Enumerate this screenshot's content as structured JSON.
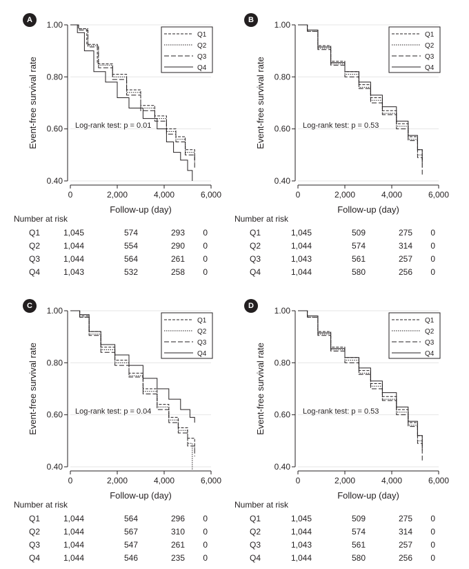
{
  "risk_title": "Number at risk",
  "chart_data": [
    {
      "panel": "A",
      "type": "line",
      "xlabel": "Follow-up (day)",
      "ylabel": "Event-free survival rate",
      "xlim": [
        0,
        6000
      ],
      "ylim": [
        0.4,
        1.0
      ],
      "xticks": [
        "0",
        "2,000",
        "4,000",
        "6,000"
      ],
      "yticks": [
        "0.40",
        "0.60",
        "0.80",
        "1.00"
      ],
      "legend_position": "top-right",
      "annotation": "Log-rank test: p = 0.01",
      "series": [
        {
          "name": "Q1",
          "dash": "4 2",
          "x": [
            0,
            350,
            700,
            1150,
            1800,
            2400,
            3000,
            3600,
            4100,
            4500,
            4900,
            5300
          ],
          "y": [
            1.0,
            0.985,
            0.925,
            0.85,
            0.81,
            0.75,
            0.69,
            0.65,
            0.6,
            0.57,
            0.52,
            0.48
          ]
        },
        {
          "name": "Q2",
          "dash": "1.5 1.5",
          "x": [
            0,
            350,
            750,
            1200,
            1800,
            2400,
            3000,
            3600,
            4100,
            4500,
            4900,
            5300
          ],
          "y": [
            1.0,
            0.985,
            0.92,
            0.845,
            0.8,
            0.74,
            0.68,
            0.64,
            0.59,
            0.56,
            0.51,
            0.47
          ]
        },
        {
          "name": "Q3",
          "dash": "7 3",
          "x": [
            0,
            350,
            750,
            1200,
            1800,
            2400,
            3000,
            3600,
            4100,
            4500,
            4900,
            5300
          ],
          "y": [
            1.0,
            0.98,
            0.915,
            0.835,
            0.79,
            0.73,
            0.67,
            0.63,
            0.58,
            0.55,
            0.5,
            0.45
          ]
        },
        {
          "name": "Q4",
          "dash": "",
          "x": [
            0,
            300,
            600,
            1000,
            1500,
            2000,
            2500,
            3100,
            3700,
            4100,
            4400,
            4700,
            5000,
            5200
          ],
          "y": [
            1.0,
            0.97,
            0.9,
            0.82,
            0.78,
            0.72,
            0.68,
            0.64,
            0.6,
            0.55,
            0.51,
            0.48,
            0.44,
            0.4
          ]
        }
      ],
      "at_risk": [
        {
          "group": "Q1",
          "counts": [
            "1,045",
            "574",
            "293",
            "0"
          ]
        },
        {
          "group": "Q2",
          "counts": [
            "1,044",
            "554",
            "290",
            "0"
          ]
        },
        {
          "group": "Q3",
          "counts": [
            "1,044",
            "564",
            "261",
            "0"
          ]
        },
        {
          "group": "Q4",
          "counts": [
            "1,043",
            "532",
            "258",
            "0"
          ]
        }
      ]
    },
    {
      "panel": "B",
      "type": "line",
      "xlabel": "Follow-up (day)",
      "ylabel": "Event-free survival rate",
      "xlim": [
        0,
        6000
      ],
      "ylim": [
        0.4,
        1.0
      ],
      "xticks": [
        "0",
        "2,000",
        "4,000",
        "6,000"
      ],
      "yticks": [
        "0.40",
        "0.60",
        "0.80",
        "1.00"
      ],
      "legend_position": "top-right",
      "annotation": "Log-rank test: p = 0.53",
      "series": [
        {
          "name": "Q1",
          "dash": "4 2",
          "x": [
            0,
            400,
            850,
            1400,
            2000,
            2600,
            3100,
            3600,
            4200,
            4700,
            5100,
            5300
          ],
          "y": [
            1.0,
            0.98,
            0.92,
            0.86,
            0.82,
            0.77,
            0.72,
            0.67,
            0.62,
            0.57,
            0.52,
            0.48
          ]
        },
        {
          "name": "Q2",
          "dash": "1.5 1.5",
          "x": [
            0,
            400,
            850,
            1400,
            2000,
            2600,
            3100,
            3600,
            4200,
            4700,
            5100,
            5300
          ],
          "y": [
            1.0,
            0.975,
            0.91,
            0.85,
            0.81,
            0.76,
            0.71,
            0.66,
            0.61,
            0.56,
            0.5,
            0.45
          ]
        },
        {
          "name": "Q3",
          "dash": "7 3",
          "x": [
            0,
            400,
            850,
            1400,
            2000,
            2600,
            3100,
            3600,
            4200,
            4700,
            5100,
            5300
          ],
          "y": [
            1.0,
            0.975,
            0.905,
            0.845,
            0.8,
            0.755,
            0.7,
            0.655,
            0.6,
            0.555,
            0.49,
            0.42
          ]
        },
        {
          "name": "Q4",
          "dash": "",
          "x": [
            0,
            400,
            850,
            1400,
            2000,
            2600,
            3100,
            3600,
            4200,
            4700,
            5100,
            5300
          ],
          "y": [
            1.0,
            0.98,
            0.915,
            0.855,
            0.82,
            0.78,
            0.73,
            0.685,
            0.63,
            0.575,
            0.52,
            0.47
          ]
        }
      ],
      "at_risk": [
        {
          "group": "Q1",
          "counts": [
            "1,045",
            "509",
            "275",
            "0"
          ]
        },
        {
          "group": "Q2",
          "counts": [
            "1,044",
            "574",
            "314",
            "0"
          ]
        },
        {
          "group": "Q3",
          "counts": [
            "1,043",
            "561",
            "257",
            "0"
          ]
        },
        {
          "group": "Q4",
          "counts": [
            "1,044",
            "580",
            "256",
            "0"
          ]
        }
      ]
    },
    {
      "panel": "C",
      "type": "line",
      "xlabel": "Follow-up (day)",
      "ylabel": "Event-free survival rate",
      "xlim": [
        0,
        6000
      ],
      "ylim": [
        0.4,
        1.0
      ],
      "xticks": [
        "0",
        "2,000",
        "4,000",
        "6,000"
      ],
      "yticks": [
        "0.40",
        "0.60",
        "0.80",
        "1.00"
      ],
      "legend_position": "top-right",
      "annotation": "Log-rank test: p = 0.04",
      "series": [
        {
          "name": "Q1",
          "dash": "4 2",
          "x": [
            0,
            400,
            800,
            1300,
            1900,
            2500,
            3100,
            3700,
            4200,
            4600,
            5000,
            5300
          ],
          "y": [
            1.0,
            0.98,
            0.92,
            0.86,
            0.81,
            0.76,
            0.7,
            0.64,
            0.59,
            0.55,
            0.51,
            0.47
          ]
        },
        {
          "name": "Q2",
          "dash": "1.5 1.5",
          "x": [
            0,
            400,
            800,
            1300,
            1900,
            2500,
            3100,
            3700,
            4200,
            4600,
            5000,
            5200
          ],
          "y": [
            1.0,
            0.975,
            0.91,
            0.85,
            0.8,
            0.75,
            0.69,
            0.63,
            0.58,
            0.54,
            0.49,
            0.39
          ]
        },
        {
          "name": "Q3",
          "dash": "7 3",
          "x": [
            0,
            400,
            800,
            1300,
            1900,
            2500,
            3100,
            3700,
            4200,
            4600,
            5000,
            5300
          ],
          "y": [
            1.0,
            0.975,
            0.905,
            0.84,
            0.79,
            0.745,
            0.68,
            0.62,
            0.57,
            0.53,
            0.48,
            0.44
          ]
        },
        {
          "name": "Q4",
          "dash": "",
          "x": [
            0,
            400,
            800,
            1300,
            1900,
            2500,
            3100,
            3700,
            4200,
            4700,
            5100,
            5300
          ],
          "y": [
            1.0,
            0.985,
            0.92,
            0.87,
            0.83,
            0.79,
            0.74,
            0.7,
            0.66,
            0.62,
            0.59,
            0.57
          ]
        }
      ],
      "at_risk": [
        {
          "group": "Q1",
          "counts": [
            "1,044",
            "564",
            "296",
            "0"
          ]
        },
        {
          "group": "Q2",
          "counts": [
            "1,044",
            "567",
            "310",
            "0"
          ]
        },
        {
          "group": "Q3",
          "counts": [
            "1,044",
            "547",
            "261",
            "0"
          ]
        },
        {
          "group": "Q4",
          "counts": [
            "1,044",
            "546",
            "235",
            "0"
          ]
        }
      ]
    },
    {
      "panel": "D",
      "type": "line",
      "xlabel": "Follow-up (day)",
      "ylabel": "Event-free survival rate",
      "xlim": [
        0,
        6000
      ],
      "ylim": [
        0.4,
        1.0
      ],
      "xticks": [
        "0",
        "2,000",
        "4,000",
        "6,000"
      ],
      "yticks": [
        "0.40",
        "0.60",
        "0.80",
        "1.00"
      ],
      "legend_position": "top-right",
      "annotation": "Log-rank test: p = 0.53",
      "series": [
        {
          "name": "Q1",
          "dash": "4 2",
          "x": [
            0,
            400,
            850,
            1400,
            2000,
            2600,
            3100,
            3600,
            4200,
            4700,
            5100,
            5300
          ],
          "y": [
            1.0,
            0.98,
            0.92,
            0.86,
            0.82,
            0.77,
            0.72,
            0.67,
            0.62,
            0.57,
            0.52,
            0.49
          ]
        },
        {
          "name": "Q2",
          "dash": "1.5 1.5",
          "x": [
            0,
            400,
            850,
            1400,
            2000,
            2600,
            3100,
            3600,
            4200,
            4700,
            5100,
            5300
          ],
          "y": [
            1.0,
            0.975,
            0.91,
            0.85,
            0.81,
            0.76,
            0.71,
            0.66,
            0.61,
            0.56,
            0.5,
            0.46
          ]
        },
        {
          "name": "Q3",
          "dash": "7 3",
          "x": [
            0,
            400,
            850,
            1400,
            2000,
            2600,
            3100,
            3600,
            4200,
            4700,
            5100,
            5300
          ],
          "y": [
            1.0,
            0.975,
            0.905,
            0.845,
            0.8,
            0.755,
            0.7,
            0.655,
            0.6,
            0.555,
            0.49,
            0.42
          ]
        },
        {
          "name": "Q4",
          "dash": "",
          "x": [
            0,
            400,
            850,
            1400,
            2000,
            2600,
            3100,
            3600,
            4200,
            4700,
            5100,
            5300
          ],
          "y": [
            1.0,
            0.98,
            0.915,
            0.855,
            0.82,
            0.78,
            0.73,
            0.685,
            0.63,
            0.575,
            0.52,
            0.47
          ]
        }
      ],
      "at_risk": [
        {
          "group": "Q1",
          "counts": [
            "1,045",
            "509",
            "275",
            "0"
          ]
        },
        {
          "group": "Q2",
          "counts": [
            "1,044",
            "574",
            "314",
            "0"
          ]
        },
        {
          "group": "Q3",
          "counts": [
            "1,043",
            "561",
            "257",
            "0"
          ]
        },
        {
          "group": "Q4",
          "counts": [
            "1,044",
            "580",
            "256",
            "0"
          ]
        }
      ]
    }
  ]
}
